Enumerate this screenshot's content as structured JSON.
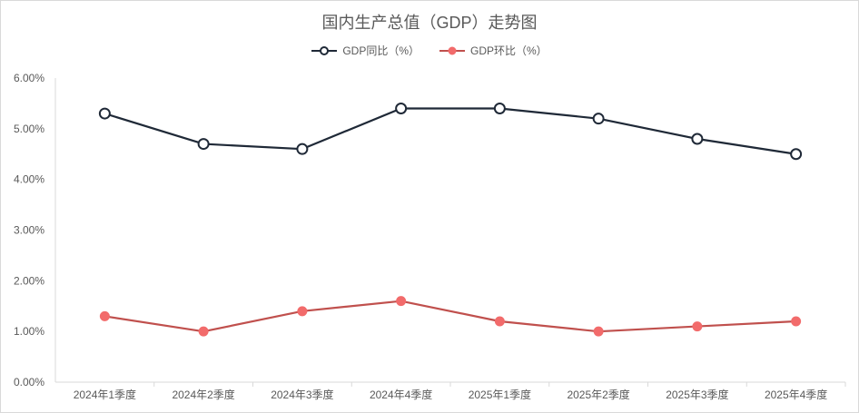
{
  "chart_data": {
    "type": "line",
    "title": "国内生产总值（GDP）走势图",
    "xlabel": "",
    "ylabel": "",
    "categories": [
      "2024年1季度",
      "2024年2季度",
      "2024年3季度",
      "2024年4季度",
      "2025年1季度",
      "2025年2季度",
      "2025年3季度",
      "2025年4季度"
    ],
    "ylim": [
      0,
      6
    ],
    "yticks": [
      0,
      1,
      2,
      3,
      4,
      5,
      6
    ],
    "ytick_labels": [
      "0.00%",
      "1.00%",
      "2.00%",
      "3.00%",
      "4.00%",
      "5.00%",
      "6.00%"
    ],
    "grid": false,
    "legend_position": "top",
    "series": [
      {
        "name": "GDP同比（%）",
        "values": [
          5.3,
          4.7,
          4.6,
          5.4,
          5.4,
          5.2,
          4.8,
          4.5
        ],
        "line_color": "#1f2937",
        "marker_fill": "#ffffff",
        "marker_stroke": "#1f2937"
      },
      {
        "name": "GDP环比（%）",
        "values": [
          1.3,
          1.0,
          1.4,
          1.6,
          1.2,
          1.0,
          1.1,
          1.2
        ],
        "line_color": "#c0504d",
        "marker_fill": "#f26b6b",
        "marker_stroke": "#f26b6b"
      }
    ]
  }
}
